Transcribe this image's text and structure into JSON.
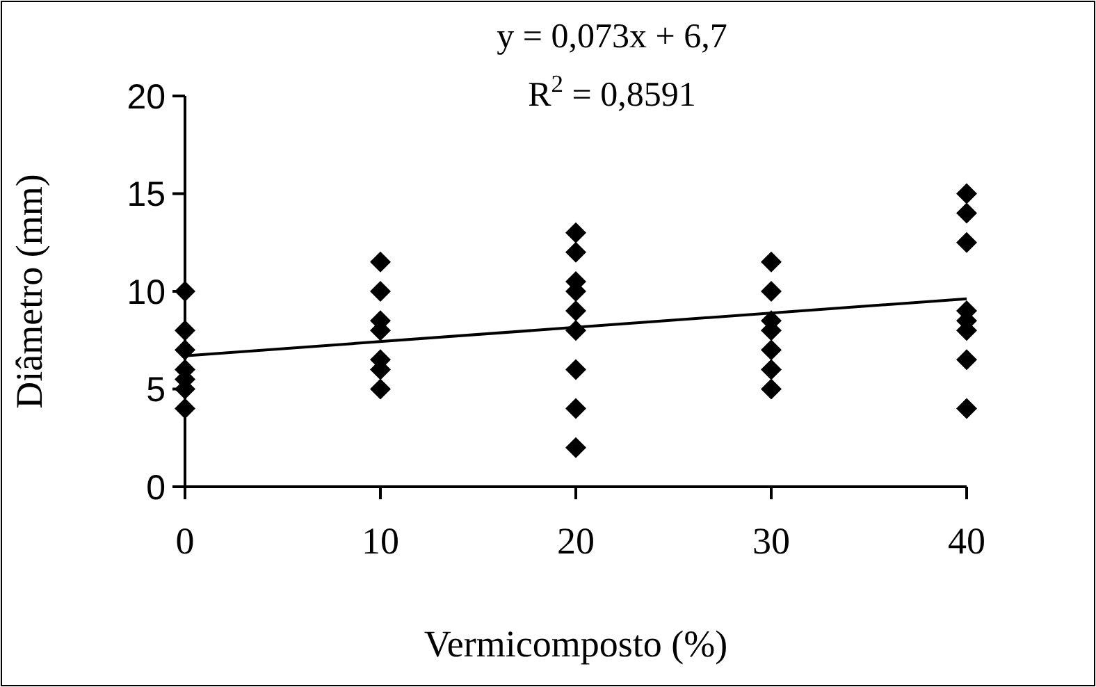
{
  "chart_data": {
    "type": "scatter",
    "xlabel": "Vermicomposto (%)",
    "ylabel": "Diâmetro (mm)",
    "xlim": [
      0,
      40
    ],
    "ylim": [
      0,
      20
    ],
    "xticks": [
      0,
      10,
      20,
      30,
      40
    ],
    "yticks": [
      0,
      5,
      10,
      15,
      20
    ],
    "grid": false,
    "marker": "diamond",
    "annotations": [
      "y = 0,073x + 6,7",
      "R$^{2}$ = 0,8591"
    ],
    "series": [
      {
        "color": "#000000",
        "x": [
          0,
          0,
          0,
          0,
          0,
          0,
          0,
          10,
          10,
          10,
          10,
          10,
          10,
          10,
          20,
          20,
          20,
          20,
          20,
          20,
          20,
          20,
          20,
          30,
          30,
          30,
          30,
          30,
          30,
          30,
          40,
          40,
          40,
          40,
          40,
          40,
          40,
          40
        ],
        "values": [
          10,
          8,
          7,
          6,
          5.5,
          5,
          4,
          11.5,
          10,
          8.5,
          8,
          6.5,
          6,
          5,
          13,
          12,
          10.5,
          10,
          9,
          8,
          6,
          4,
          2,
          11.5,
          10,
          8.5,
          8,
          7,
          6,
          5,
          15,
          14,
          12.5,
          9,
          8.5,
          8,
          6.5,
          4
        ]
      },
      {
        "type": "line",
        "color": "#000000",
        "x": [
          0,
          40
        ],
        "values": [
          6.7,
          9.62
        ],
        "marker": "none",
        "line_style": "solid"
      }
    ]
  }
}
